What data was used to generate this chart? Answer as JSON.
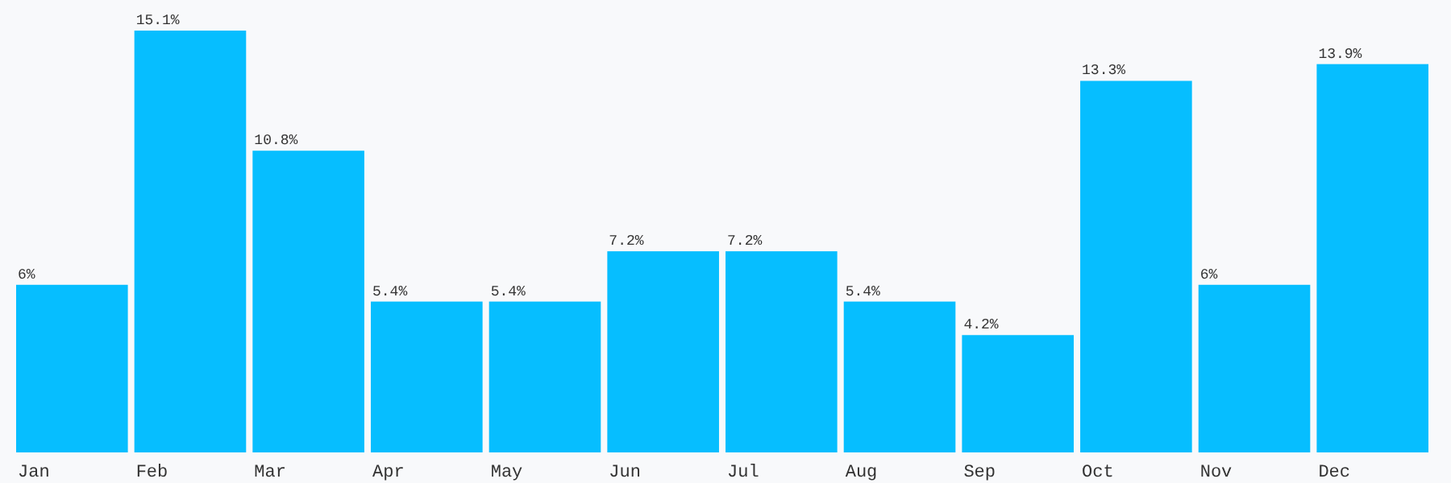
{
  "chart_data": {
    "type": "bar",
    "categories": [
      "Jan",
      "Feb",
      "Mar",
      "Apr",
      "May",
      "Jun",
      "Jul",
      "Aug",
      "Sep",
      "Oct",
      "Nov",
      "Dec"
    ],
    "values": [
      6,
      15.1,
      10.8,
      5.4,
      5.4,
      7.2,
      7.2,
      5.4,
      4.2,
      13.3,
      6,
      13.9
    ],
    "value_labels": [
      "6%",
      "15.1%",
      "10.8%",
      "5.4%",
      "5.4%",
      "7.2%",
      "7.2%",
      "5.4%",
      "4.2%",
      "13.3%",
      "6%",
      "13.9%"
    ],
    "color": "#06beff"
  }
}
